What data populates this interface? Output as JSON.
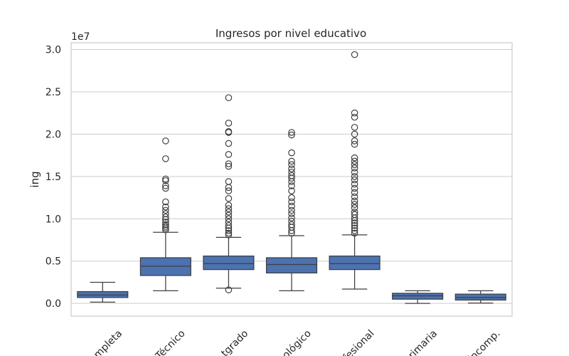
{
  "chart_data": {
    "type": "box",
    "title": "Ingresos por nivel educativo",
    "xlabel": "",
    "ylabel": "ing",
    "y_offset_label": "1e7",
    "y_scale": 10000000,
    "ylim": [
      -1500000,
      30800000
    ],
    "yticks": [
      0,
      5000000,
      10000000,
      15000000,
      20000000,
      25000000,
      30000000
    ],
    "ytick_labels": [
      "0.0",
      "0.5",
      "1.0",
      "1.5",
      "2.0",
      "2.5",
      "3.0"
    ],
    "grid": "horizontal",
    "color": "#4c72b0",
    "categories": [
      "Secundaria completa",
      "Técnico",
      "Posgrado",
      "Tecnológico",
      "Profesional",
      "Primaria",
      "Secundaria incomp."
    ],
    "tick_labels_visible": [
      "mpleta",
      "Técnico",
      "tgrado",
      "ológico",
      "fesional",
      "rimaria",
      "incomp."
    ],
    "boxes": [
      {
        "category": "Secundaria completa",
        "whisker_low": 150000,
        "q1": 700000,
        "median": 1000000,
        "q3": 1400000,
        "whisker_high": 2500000,
        "outliers": []
      },
      {
        "category": "Técnico",
        "whisker_low": 1500000,
        "q1": 3300000,
        "median": 4400000,
        "q3": 5400000,
        "whisker_high": 8400000,
        "outliers": [
          8700000,
          8900000,
          9100000,
          9300000,
          9600000,
          9900000,
          10200000,
          10600000,
          11000000,
          11400000,
          12000000,
          13600000,
          13900000,
          14500000,
          14700000,
          17100000,
          19200000
        ]
      },
      {
        "category": "Posgrado",
        "whisker_low": 1800000,
        "q1": 4000000,
        "median": 4700000,
        "q3": 5600000,
        "whisker_high": 7800000,
        "outliers": [
          1600000,
          8100000,
          8300000,
          8600000,
          8900000,
          9200000,
          9600000,
          10000000,
          10400000,
          10800000,
          11200000,
          11600000,
          12400000,
          13300000,
          13700000,
          14400000,
          16200000,
          16500000,
          17600000,
          18900000,
          20200000,
          20300000,
          21300000,
          24300000
        ]
      },
      {
        "category": "Tecnológico",
        "whisker_low": 1500000,
        "q1": 3600000,
        "median": 4600000,
        "q3": 5400000,
        "whisker_high": 8000000,
        "outliers": [
          8300000,
          8600000,
          9000000,
          9300000,
          9700000,
          10100000,
          10600000,
          11000000,
          11500000,
          12000000,
          12500000,
          13300000,
          13900000,
          14400000,
          14800000,
          15100000,
          15500000,
          15900000,
          16400000,
          16800000,
          17800000,
          19900000,
          20200000
        ]
      },
      {
        "category": "Profesional",
        "whisker_low": 1700000,
        "q1": 4000000,
        "median": 4700000,
        "q3": 5600000,
        "whisker_high": 8100000,
        "outliers": [
          8300000,
          8600000,
          8900000,
          9200000,
          9500000,
          9800000,
          10100000,
          10500000,
          10800000,
          11300000,
          11700000,
          12100000,
          12600000,
          13100000,
          13600000,
          14100000,
          14600000,
          15000000,
          15500000,
          16000000,
          16400000,
          16800000,
          17200000,
          18800000,
          19200000,
          20000000,
          20800000,
          22000000,
          22500000,
          29400000
        ]
      },
      {
        "category": "Primaria",
        "whisker_low": 0,
        "q1": 500000,
        "median": 900000,
        "q3": 1200000,
        "whisker_high": 1500000,
        "outliers": []
      },
      {
        "category": "Secundaria incomp.",
        "whisker_low": 50000,
        "q1": 400000,
        "median": 700000,
        "q3": 1100000,
        "whisker_high": 1500000,
        "outliers": []
      }
    ]
  }
}
